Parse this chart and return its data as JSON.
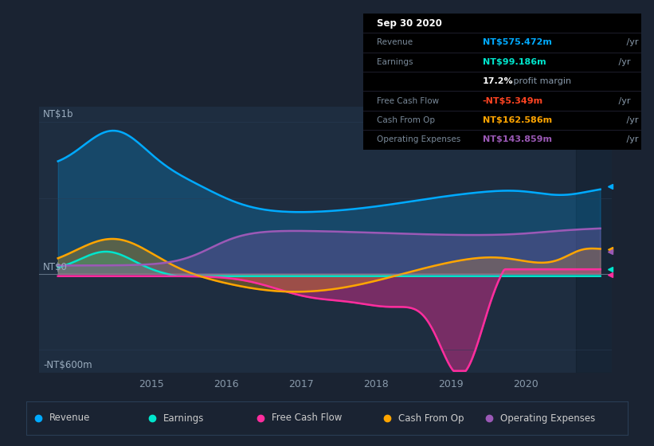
{
  "bg_color": "#1a2332",
  "plot_bg_color": "#1e2d40",
  "y_label_top": "NT$1b",
  "y_label_zero": "NT$0",
  "y_label_bottom": "-NT$600m",
  "x_ticks": [
    2015,
    2016,
    2017,
    2018,
    2019,
    2020
  ],
  "ylim": [
    -650,
    1100
  ],
  "colors": {
    "revenue": "#00aaff",
    "earnings": "#00e5cc",
    "free_cash_flow": "#ff2d9e",
    "cash_from_op": "#ffa500",
    "operating_expenses": "#9b59b6"
  },
  "info_box": {
    "date": "Sep 30 2020",
    "revenue": "NT$575.472m",
    "earnings": "NT$99.186m",
    "profit_margin": "17.2%",
    "free_cash_flow": "-NT$5.349m",
    "cash_from_op": "NT$162.586m",
    "operating_expenses": "NT$143.859m"
  },
  "legend": [
    {
      "label": "Revenue",
      "color": "#00aaff"
    },
    {
      "label": "Earnings",
      "color": "#00e5cc"
    },
    {
      "label": "Free Cash Flow",
      "color": "#ff2d9e"
    },
    {
      "label": "Cash From Op",
      "color": "#ffa500"
    },
    {
      "label": "Operating Expenses",
      "color": "#9b59b6"
    }
  ]
}
